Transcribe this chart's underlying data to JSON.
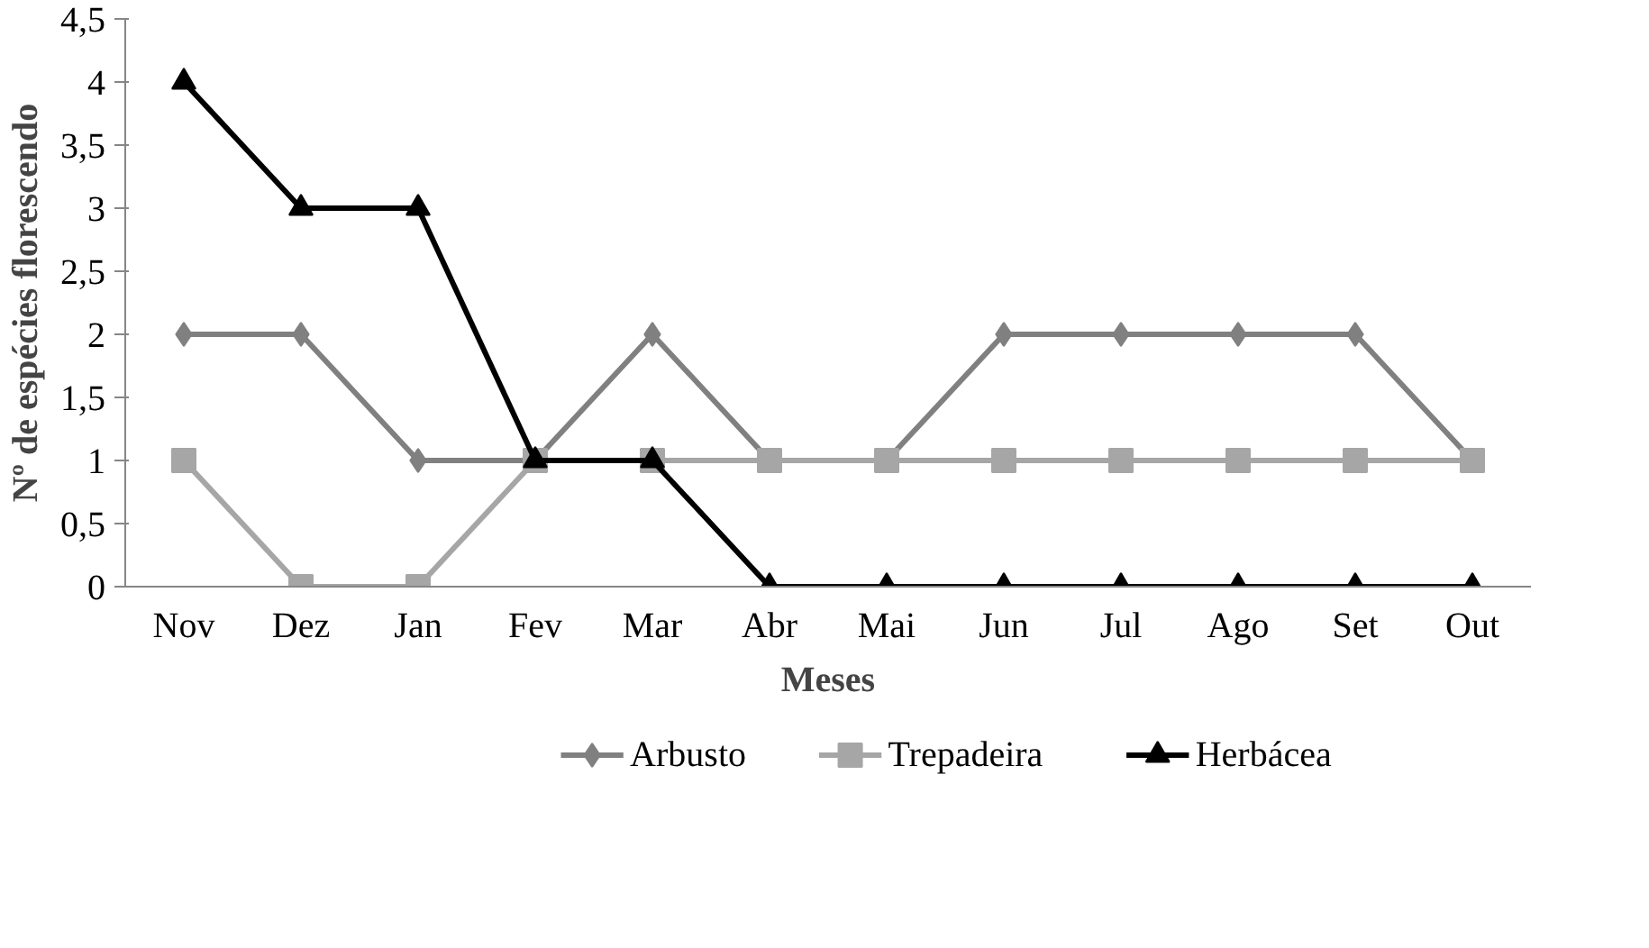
{
  "chart_data": {
    "type": "line",
    "xlabel": "Meses",
    "ylabel": "Nº de espécies florescendo",
    "categories": [
      "Nov",
      "Dez",
      "Jan",
      "Fev",
      "Mar",
      "Abr",
      "Mai",
      "Jun",
      "Jul",
      "Ago",
      "Set",
      "Out"
    ],
    "series": [
      {
        "name": "Arbusto",
        "color": "#808080",
        "marker": "diamond",
        "values": [
          2,
          2,
          1,
          1,
          2,
          1,
          1,
          2,
          2,
          2,
          2,
          1
        ]
      },
      {
        "name": "Trepadeira",
        "color": "#a6a6a6",
        "marker": "square",
        "values": [
          1,
          0,
          0,
          1,
          1,
          1,
          1,
          1,
          1,
          1,
          1,
          1
        ]
      },
      {
        "name": "Herbácea",
        "color": "#000000",
        "marker": "triangle",
        "values": [
          4,
          3,
          3,
          1,
          1,
          0,
          0,
          0,
          0,
          0,
          0,
          0
        ]
      }
    ],
    "ylim": [
      0,
      4.5
    ],
    "yticks": [
      0,
      {
        "value": 0.5,
        "label": "0,5"
      },
      1,
      {
        "value": 1.5,
        "label": "1,5"
      },
      2,
      {
        "value": 2.5,
        "label": "2,5"
      },
      3,
      {
        "value": 3.5,
        "label": "3,5"
      },
      4,
      {
        "value": 4.5,
        "label": "4,5"
      }
    ],
    "grid": false,
    "legend": "bottom",
    "line_style": "solid"
  }
}
